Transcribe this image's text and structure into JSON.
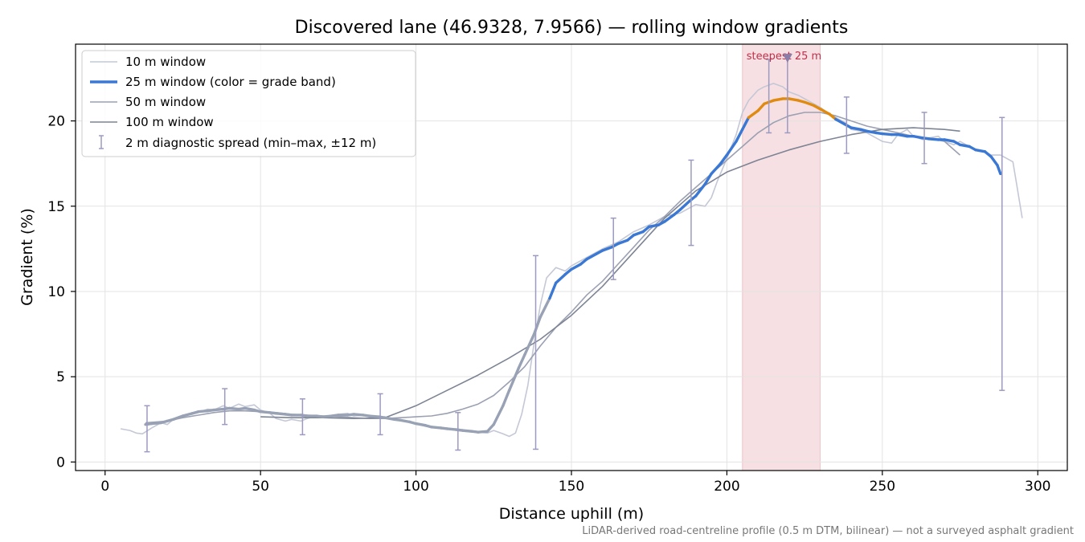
{
  "chart_data": {
    "type": "line",
    "title": "Discovered lane (46.9328, 7.9566) — rolling window gradients",
    "xlabel": "Distance uphill (m)",
    "ylabel": "Gradient (%)",
    "footnote": "LiDAR-derived road-centreline profile (0.5 m DTM, bilinear) — not a surveyed asphalt gradient",
    "xlim": [
      -9.5,
      309.5
    ],
    "ylim": [
      -0.5,
      24.5
    ],
    "xticks": [
      0,
      50,
      100,
      150,
      200,
      250,
      300
    ],
    "yticks": [
      0,
      5,
      10,
      15,
      20
    ],
    "grid": true,
    "legend_position": "upper left",
    "grade_band_colors": {
      "normal": "#3a78d4",
      "steep": "#e08a10"
    },
    "steepest_region": {
      "x_start": 205,
      "x_end": 230,
      "label": "steepest 25 m",
      "marker_x": 219.5,
      "marker_y": 23.7,
      "color": "#d9747f"
    },
    "series": [
      {
        "name": "10 m window",
        "color": "#c4c8d6",
        "x": [
          5,
          8,
          10,
          12,
          15,
          18,
          20,
          22,
          25,
          28,
          30,
          33,
          35,
          38,
          40,
          43,
          45,
          48,
          50,
          53,
          55,
          58,
          60,
          63,
          65,
          68,
          70,
          73,
          75,
          78,
          80,
          83,
          85,
          88,
          90,
          93,
          95,
          98,
          100,
          103,
          105,
          108,
          110,
          113,
          115,
          118,
          120,
          123,
          125,
          128,
          130,
          132,
          134,
          136,
          138,
          140,
          142,
          145,
          148,
          150,
          155,
          160,
          165,
          170,
          175,
          180,
          185,
          190,
          193,
          195,
          197,
          200,
          203,
          205,
          207,
          210,
          212,
          215,
          218,
          220,
          223,
          225,
          228,
          230,
          233,
          235,
          238,
          240,
          243,
          245,
          248,
          250,
          253,
          255,
          258,
          260,
          263,
          265,
          268,
          270,
          273,
          275,
          278,
          280,
          283,
          285,
          288,
          290,
          292,
          293,
          295
        ],
        "y": [
          1.95,
          1.85,
          1.7,
          1.65,
          2.0,
          2.3,
          2.2,
          2.5,
          2.7,
          2.8,
          2.9,
          3.1,
          3.05,
          3.3,
          3.15,
          3.4,
          3.25,
          3.35,
          3.05,
          2.85,
          2.55,
          2.4,
          2.5,
          2.4,
          2.55,
          2.7,
          2.65,
          2.75,
          2.8,
          2.85,
          2.7,
          2.75,
          2.65,
          2.6,
          2.6,
          2.5,
          2.45,
          2.35,
          2.25,
          2.1,
          2.05,
          1.95,
          1.95,
          1.85,
          1.8,
          1.75,
          1.75,
          1.7,
          1.85,
          1.65,
          1.5,
          1.7,
          2.8,
          4.5,
          7.0,
          9.2,
          10.8,
          11.4,
          11.2,
          11.5,
          12.0,
          12.5,
          12.9,
          13.5,
          13.9,
          14.4,
          14.6,
          15.1,
          15.0,
          15.5,
          16.5,
          17.8,
          19.2,
          20.5,
          21.2,
          21.8,
          22.0,
          22.2,
          22.0,
          21.7,
          21.5,
          21.3,
          21.0,
          20.8,
          20.4,
          20.2,
          19.9,
          19.5,
          19.4,
          19.3,
          19.0,
          18.8,
          18.7,
          19.2,
          19.5,
          19.1,
          18.9,
          19.0,
          19.1,
          18.8,
          18.6,
          18.8,
          18.5,
          18.3,
          18.2,
          18.0,
          18.0,
          17.8,
          17.6,
          16.5,
          14.3
        ]
      },
      {
        "name": "25 m window (color = grade band)",
        "color": "#3a78d4",
        "x": [
          13,
          15,
          18,
          20,
          22,
          25,
          28,
          30,
          33,
          35,
          38,
          40,
          43,
          45,
          48,
          50,
          53,
          55,
          58,
          60,
          63,
          65,
          68,
          70,
          73,
          75,
          78,
          80,
          83,
          85,
          88,
          90,
          93,
          95,
          98,
          100,
          103,
          105,
          108,
          110,
          113,
          115,
          118,
          120,
          123,
          125,
          128,
          130,
          133,
          135,
          138,
          140,
          143,
          145,
          148,
          150,
          153,
          155,
          158,
          160,
          163,
          165,
          168,
          170,
          173,
          175,
          178,
          180,
          183,
          185,
          188,
          190,
          193,
          195,
          198,
          200,
          203,
          205,
          207,
          210,
          212,
          215,
          218,
          220,
          223,
          225,
          228,
          230,
          233,
          235,
          238,
          240,
          243,
          245,
          248,
          250,
          253,
          255,
          258,
          260,
          263,
          265,
          268,
          270,
          273,
          275,
          278,
          280,
          283,
          285,
          287,
          288
        ],
        "y": [
          2.2,
          2.25,
          2.3,
          2.4,
          2.5,
          2.7,
          2.85,
          2.95,
          3.0,
          3.05,
          3.1,
          3.15,
          3.1,
          3.15,
          3.05,
          2.95,
          2.9,
          2.85,
          2.8,
          2.75,
          2.75,
          2.7,
          2.7,
          2.65,
          2.7,
          2.75,
          2.75,
          2.8,
          2.75,
          2.7,
          2.65,
          2.6,
          2.5,
          2.45,
          2.35,
          2.25,
          2.15,
          2.05,
          2.0,
          1.95,
          1.9,
          1.85,
          1.8,
          1.75,
          1.8,
          2.2,
          3.3,
          4.2,
          5.5,
          6.3,
          7.5,
          8.5,
          9.6,
          10.5,
          11.0,
          11.3,
          11.6,
          11.9,
          12.2,
          12.4,
          12.6,
          12.8,
          13.0,
          13.3,
          13.5,
          13.8,
          13.9,
          14.1,
          14.5,
          14.8,
          15.3,
          15.6,
          16.3,
          16.9,
          17.5,
          18.0,
          18.8,
          19.5,
          20.2,
          20.6,
          21.0,
          21.2,
          21.3,
          21.3,
          21.2,
          21.1,
          20.9,
          20.7,
          20.4,
          20.1,
          19.8,
          19.6,
          19.5,
          19.4,
          19.3,
          19.25,
          19.2,
          19.2,
          19.1,
          19.1,
          19.0,
          18.95,
          18.9,
          18.9,
          18.8,
          18.6,
          18.5,
          18.3,
          18.2,
          17.9,
          17.4,
          16.9
        ]
      },
      {
        "name": "50 m window",
        "color": "#9ba1b2",
        "x": [
          13,
          20,
          25,
          30,
          35,
          40,
          45,
          50,
          55,
          60,
          65,
          70,
          75,
          80,
          85,
          90,
          95,
          100,
          105,
          110,
          115,
          120,
          125,
          130,
          135,
          140,
          145,
          150,
          155,
          160,
          165,
          170,
          175,
          180,
          185,
          190,
          195,
          200,
          205,
          210,
          215,
          220,
          225,
          230,
          235,
          240,
          245,
          250,
          255,
          260,
          265,
          270,
          275
        ],
        "y": [
          2.3,
          2.4,
          2.6,
          2.75,
          2.9,
          3.0,
          3.0,
          2.95,
          2.9,
          2.8,
          2.75,
          2.7,
          2.65,
          2.6,
          2.55,
          2.55,
          2.6,
          2.65,
          2.7,
          2.85,
          3.1,
          3.4,
          3.9,
          4.7,
          5.6,
          6.8,
          7.9,
          8.8,
          9.8,
          10.6,
          11.6,
          12.6,
          13.6,
          14.4,
          15.3,
          16.1,
          16.9,
          17.7,
          18.5,
          19.3,
          19.9,
          20.3,
          20.5,
          20.5,
          20.3,
          20.0,
          19.7,
          19.5,
          19.3,
          19.1,
          19.0,
          18.8,
          18.0
        ]
      },
      {
        "name": "100 m window",
        "color": "#7d8494",
        "x": [
          50,
          60,
          70,
          80,
          90,
          100,
          110,
          120,
          130,
          140,
          150,
          160,
          170,
          180,
          190,
          200,
          210,
          220,
          230,
          240,
          250,
          260,
          270,
          275
        ],
        "y": [
          2.65,
          2.6,
          2.6,
          2.55,
          2.6,
          3.3,
          4.2,
          5.1,
          6.1,
          7.2,
          8.6,
          10.3,
          12.3,
          14.3,
          15.9,
          17.0,
          17.7,
          18.3,
          18.8,
          19.2,
          19.5,
          19.6,
          19.5,
          19.4
        ]
      },
      {
        "name": "2 m diagnostic spread (min–max, ±12 m)",
        "color": "#9c9ac0",
        "errorbars": [
          {
            "x": 13.5,
            "low": 0.6,
            "high": 3.3
          },
          {
            "x": 38.5,
            "low": 2.2,
            "high": 4.3
          },
          {
            "x": 63.5,
            "low": 1.6,
            "high": 3.7
          },
          {
            "x": 88.5,
            "low": 1.6,
            "high": 4.0
          },
          {
            "x": 113.5,
            "low": 0.7,
            "high": 2.9
          },
          {
            "x": 138.5,
            "low": 0.75,
            "high": 12.1
          },
          {
            "x": 163.5,
            "low": 10.7,
            "high": 14.3
          },
          {
            "x": 188.5,
            "low": 12.7,
            "high": 17.7
          },
          {
            "x": 213.5,
            "low": 19.3,
            "high": 23.6
          },
          {
            "x": 219.5,
            "low": 19.3,
            "high": 23.7
          },
          {
            "x": 238.5,
            "low": 18.1,
            "high": 21.4
          },
          {
            "x": 263.5,
            "low": 17.5,
            "high": 20.5
          },
          {
            "x": 288.5,
            "low": 4.2,
            "high": 20.2
          }
        ]
      }
    ]
  }
}
